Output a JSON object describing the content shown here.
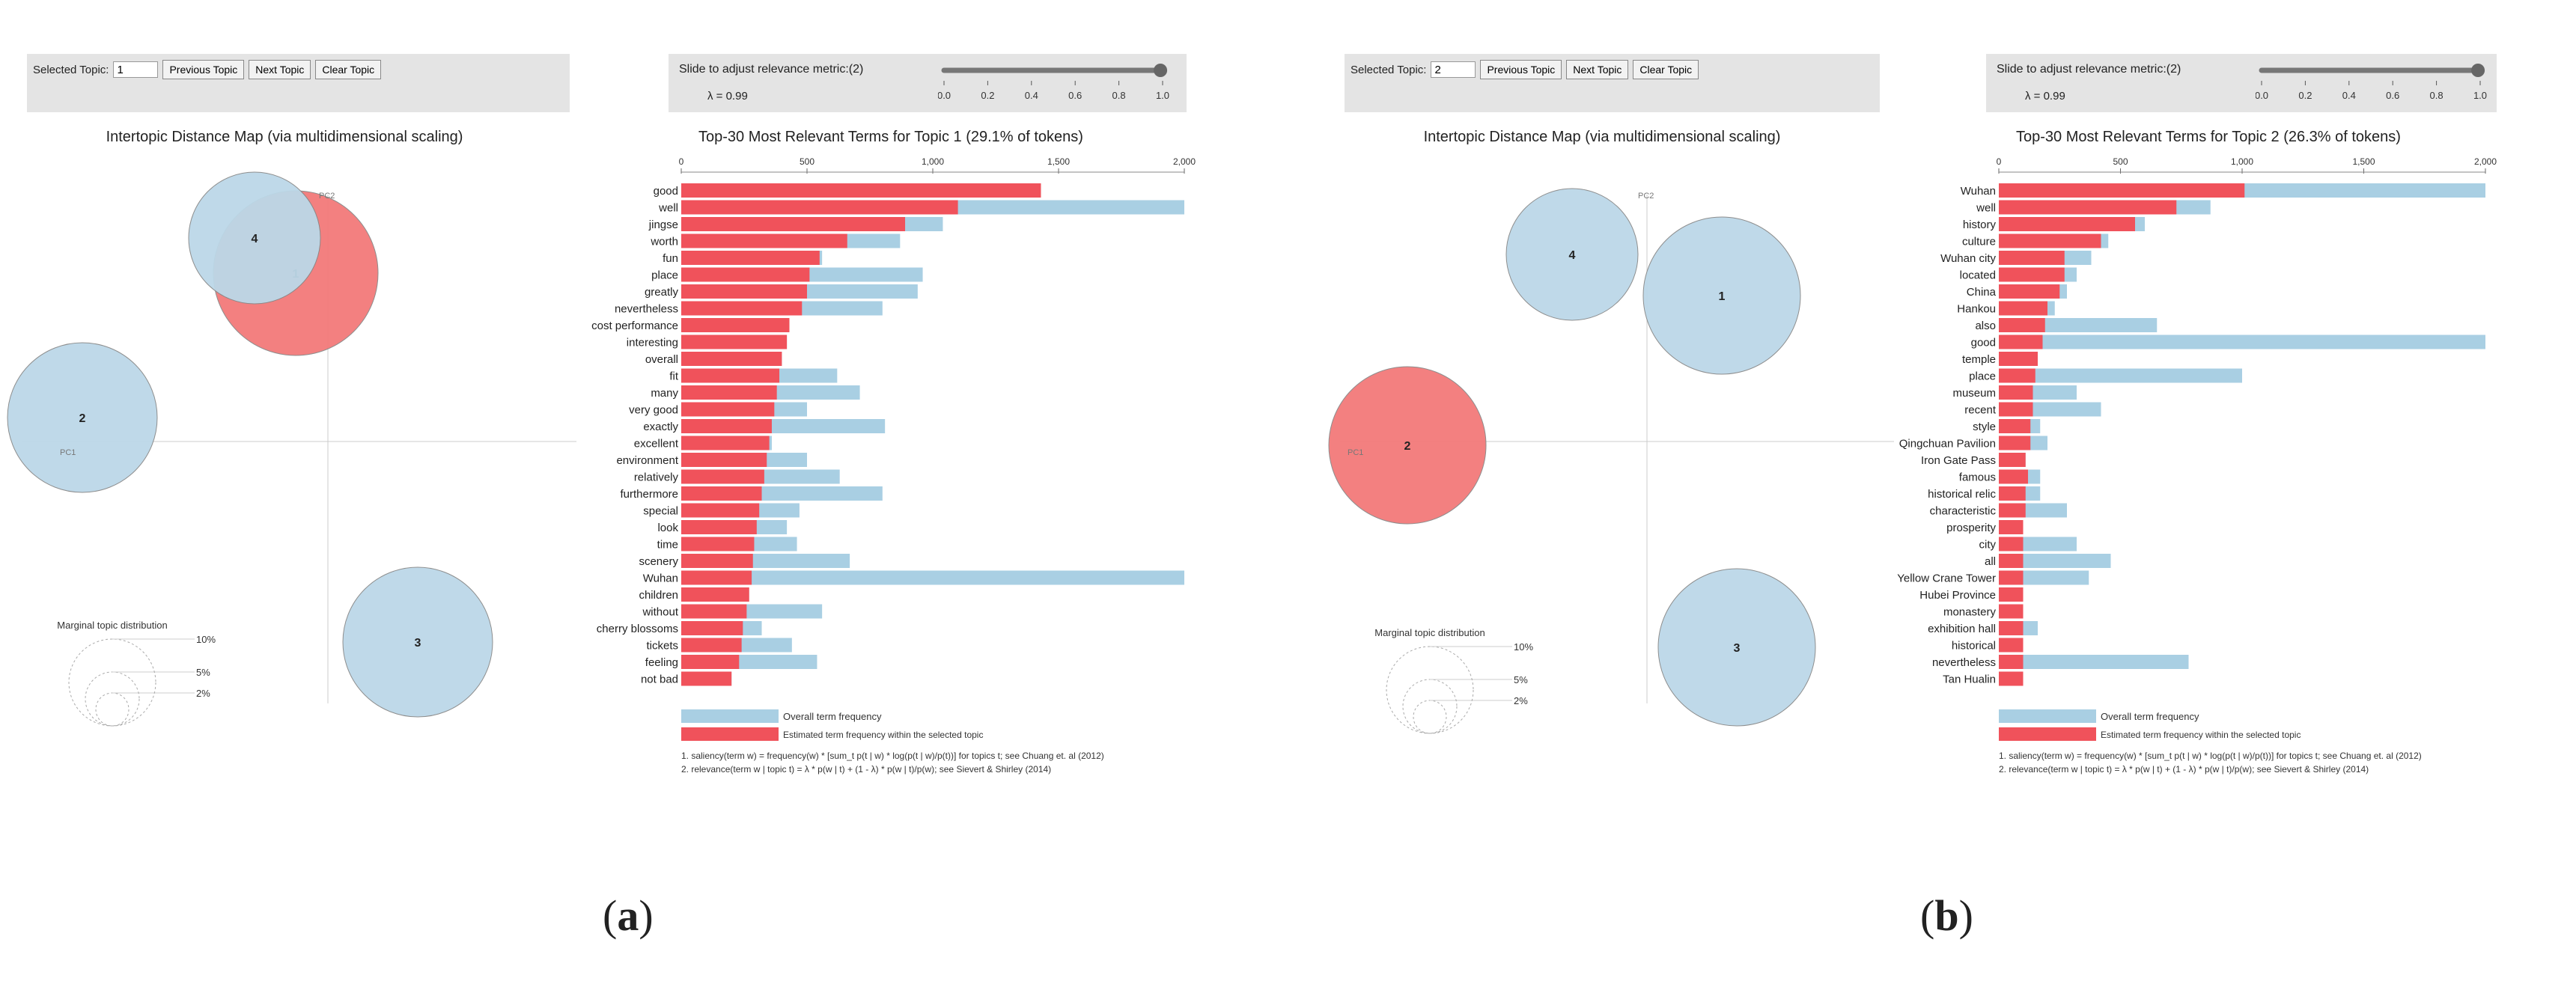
{
  "panels": [
    {
      "caption_label": "a",
      "controls": {
        "selected_topic_label": "Selected Topic:",
        "selected_topic_value": "1",
        "prev_label": "Previous Topic",
        "next_label": "Next Topic",
        "clear_label": "Clear Topic",
        "slider_label": "Slide to adjust relevance metric:(2)",
        "lambda_text": "λ = 0.99",
        "slider_value": 0.99,
        "slider_ticks": [
          "0.0",
          "0.2",
          "0.4",
          "0.6",
          "0.8",
          "1.0"
        ]
      },
      "map": {
        "title": "Intertopic Distance Map (via multidimensional scaling)",
        "pc1_label": "PC1",
        "pc2_label": "PC2",
        "legend_title": "Marginal topic distribution",
        "legend_labels": [
          "2%",
          "5%",
          "10%"
        ],
        "topics": [
          {
            "id": "1",
            "selected": true,
            "share": 0.291
          },
          {
            "id": "2",
            "selected": false,
            "share": 0.263
          },
          {
            "id": "3",
            "selected": false,
            "share": 0.245
          },
          {
            "id": "4",
            "selected": false,
            "share": 0.2
          }
        ]
      },
      "legend": {
        "overall": "Overall term frequency",
        "estimated": "Estimated term frequency within the selected topic",
        "note1": "1. saliency(term w) = frequency(w) * [sum_t p(t | w) * log(p(t | w)/p(t))] for topics t; see Chuang et. al (2012)",
        "note2": "2. relevance(term w | topic t) = λ * p(w | t) + (1 - λ) * p(w | t)/p(w); see Sievert & Shirley (2014)"
      },
      "chart_data": {
        "type": "bar",
        "title": "Top-30 Most Relevant Terms for Topic 1 (29.1% of tokens)",
        "xlim": [
          0,
          2000
        ],
        "ticks": [
          "0",
          "500",
          "1,000",
          "1,500",
          "2,000"
        ],
        "tick_values": [
          0,
          500,
          1000,
          1500,
          2000
        ],
        "categories": [
          "good",
          "well",
          "jingse",
          "worth",
          "fun",
          "place",
          "greatly",
          "nevertheless",
          "cost performance",
          "interesting",
          "overall",
          "fit",
          "many",
          "very good",
          "exactly",
          "excellent",
          "environment",
          "relatively",
          "furthermore",
          "special",
          "look",
          "time",
          "scenery",
          "Wuhan",
          "children",
          "without",
          "cherry blossoms",
          "tickets",
          "feeling",
          "not bad"
        ],
        "series": [
          {
            "name": "Overall term frequency",
            "values": [
              1430,
              2000,
              1040,
              870,
              560,
              960,
              940,
              800,
              430,
              420,
              400,
              620,
              710,
              500,
              810,
              360,
              500,
              630,
              800,
              470,
              420,
              460,
              670,
              2000,
              270,
              560,
              320,
              440,
              540,
              200
            ]
          },
          {
            "name": "Estimated term frequency within the selected topic",
            "values": [
              1430,
              1100,
              890,
              660,
              550,
              510,
              500,
              480,
              430,
              420,
              400,
              390,
              380,
              370,
              360,
              350,
              340,
              330,
              320,
              310,
              300,
              290,
              285,
              280,
              270,
              260,
              245,
              240,
              230,
              200
            ]
          }
        ]
      }
    },
    {
      "caption_label": "b",
      "controls": {
        "selected_topic_label": "Selected Topic:",
        "selected_topic_value": "2",
        "prev_label": "Previous Topic",
        "next_label": "Next Topic",
        "clear_label": "Clear Topic",
        "slider_label": "Slide to adjust relevance metric:(2)",
        "lambda_text": "λ = 0.99",
        "slider_value": 0.99,
        "slider_ticks": [
          "0.0",
          "0.2",
          "0.4",
          "0.6",
          "0.8",
          "1.0"
        ]
      },
      "map": {
        "title": "Intertopic Distance Map (via multidimensional scaling)",
        "pc1_label": "PC1",
        "pc2_label": "PC2",
        "legend_title": "Marginal topic distribution",
        "legend_labels": [
          "2%",
          "5%",
          "10%"
        ],
        "topics": [
          {
            "id": "1",
            "selected": false,
            "share": 0.291
          },
          {
            "id": "2",
            "selected": true,
            "share": 0.263
          },
          {
            "id": "3",
            "selected": false,
            "share": 0.245
          },
          {
            "id": "4",
            "selected": false,
            "share": 0.2
          }
        ]
      },
      "legend": {
        "overall": "Overall term frequency",
        "estimated": "Estimated term frequency within the selected topic",
        "note1": "1. saliency(term w) = frequency(w) * [sum_t p(t | w) * log(p(t | w)/p(t))] for topics t; see Chuang et. al (2012)",
        "note2": "2. relevance(term w | topic t) = λ * p(w | t) + (1 - λ) * p(w | t)/p(w); see Sievert & Shirley (2014)"
      },
      "chart_data": {
        "type": "bar",
        "title": "Top-30 Most Relevant Terms for Topic 2 (26.3% of tokens)",
        "xlim": [
          0,
          2000
        ],
        "ticks": [
          "0",
          "500",
          "1,000",
          "1,500",
          "2,000"
        ],
        "tick_values": [
          0,
          500,
          1000,
          1500,
          2000
        ],
        "categories": [
          "Wuhan",
          "well",
          "history",
          "culture",
          "Wuhan city",
          "located",
          "China",
          "Hankou",
          "also",
          "good",
          "temple",
          "place",
          "museum",
          "recent",
          "style",
          "Qingchuan Pavilion",
          "Iron Gate Pass",
          "famous",
          "historical relic",
          "characteristic",
          "prosperity",
          "city",
          "all",
          "Yellow Crane Tower",
          "Hubei Province",
          "monastery",
          "exhibition hall",
          "historical",
          "nevertheless",
          "Tan Hualin"
        ],
        "series": [
          {
            "name": "Overall term frequency",
            "values": [
              2000,
              870,
              600,
              450,
              380,
              320,
              280,
              230,
              650,
              2000,
              160,
              1000,
              320,
              420,
              170,
              200,
              110,
              170,
              170,
              280,
              80,
              320,
              460,
              370,
              100,
              100,
              160,
              100,
              780,
              100
            ]
          },
          {
            "name": "Estimated term frequency within the selected topic",
            "values": [
              1010,
              730,
              560,
              420,
              270,
              270,
              250,
              200,
              190,
              180,
              160,
              150,
              140,
              140,
              130,
              130,
              110,
              120,
              110,
              110,
              100,
              100,
              100,
              100,
              100,
              100,
              100,
              100,
              100,
              100
            ]
          }
        ]
      }
    }
  ]
}
